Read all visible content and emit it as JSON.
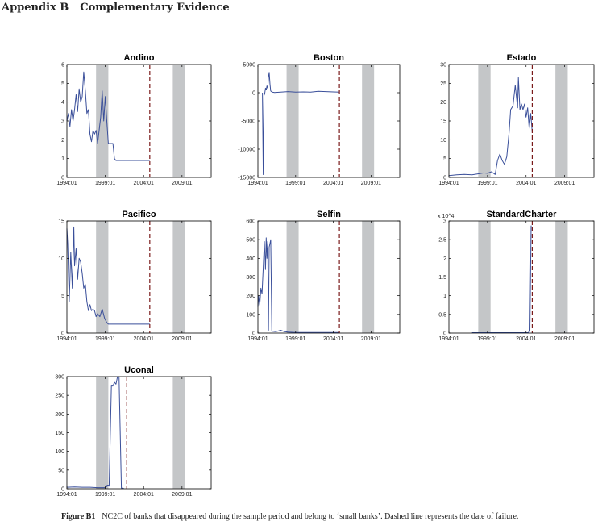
{
  "heading": {
    "section": "Appendix B",
    "title": "Complementary Evidence"
  },
  "caption": {
    "label": "Figure B1",
    "text": "NC2C of banks that disappeared during the sample period and belong to ‘small banks’. Dashed line represents the date of failure."
  },
  "colors": {
    "series": "#3a4f9a",
    "shade": "#c4c6c8",
    "failure": "#7a1a1a",
    "axis": "#000000"
  },
  "chart_data": [
    {
      "type": "line",
      "title": "Andino",
      "x_ticks": [
        "1994:01",
        "1999:01",
        "2004:01",
        "2009:01"
      ],
      "xlim": [
        1994.0,
        2012.8
      ],
      "ylim": [
        0,
        6
      ],
      "y_ticks": [
        "0",
        "1",
        "2",
        "3",
        "4",
        "5",
        "6"
      ],
      "y_tick_values": [
        0,
        1,
        2,
        3,
        4,
        5,
        6
      ],
      "y_exponent": "",
      "shaded_periods": [
        [
          1997.8,
          1999.4
        ],
        [
          2007.8,
          2009.4
        ]
      ],
      "failure_date": 2004.8,
      "x": [
        1994.0,
        1994.2,
        1994.4,
        1994.6,
        1994.8,
        1995.0,
        1995.2,
        1995.4,
        1995.6,
        1995.8,
        1996.0,
        1996.2,
        1996.4,
        1996.6,
        1996.8,
        1997.0,
        1997.2,
        1997.4,
        1997.6,
        1997.8,
        1998.0,
        1998.2,
        1998.4,
        1998.6,
        1998.8,
        1999.0,
        1999.2,
        1999.4,
        1999.6,
        1999.8,
        2000.0,
        2000.2,
        2000.4,
        2000.6,
        2004.8
      ],
      "y": [
        3.0,
        3.4,
        2.7,
        3.6,
        3.0,
        3.6,
        4.4,
        3.5,
        4.7,
        4.0,
        4.3,
        5.6,
        4.6,
        3.4,
        3.6,
        2.3,
        1.9,
        2.5,
        2.3,
        2.5,
        1.8,
        2.5,
        3.2,
        4.6,
        3.0,
        4.3,
        3.0,
        1.8,
        1.8,
        1.8,
        1.8,
        1.0,
        0.9,
        0.9,
        0.9
      ]
    },
    {
      "type": "line",
      "title": "Boston",
      "x_ticks": [
        "1994:01",
        "1999:01",
        "2004:01",
        "2009:01"
      ],
      "xlim": [
        1994.0,
        2012.8
      ],
      "ylim": [
        -15000,
        5000
      ],
      "y_ticks": [
        "-15000",
        "-10000",
        "-5000",
        "0",
        "5000"
      ],
      "y_tick_values": [
        -15000,
        -10000,
        -5000,
        0,
        5000
      ],
      "y_exponent": "",
      "shaded_periods": [
        [
          1997.8,
          1999.4
        ],
        [
          2007.8,
          2009.4
        ]
      ],
      "failure_date": 2004.8,
      "x": [
        1994.6,
        1994.7,
        1994.8,
        1994.9,
        1995.0,
        1995.1,
        1995.2,
        1995.3,
        1995.4,
        1995.5,
        1995.6,
        1995.7,
        1995.9,
        1996.2,
        1997.0,
        1998.0,
        1999.0,
        2000.0,
        2001.0,
        2002.0,
        2003.0,
        2004.0,
        2004.8
      ],
      "y": [
        0,
        -14500,
        -500,
        -200,
        800,
        500,
        1200,
        800,
        2800,
        3600,
        1500,
        300,
        100,
        50,
        100,
        200,
        100,
        150,
        100,
        250,
        200,
        150,
        100
      ]
    },
    {
      "type": "line",
      "title": "Estado",
      "x_ticks": [
        "1994:01",
        "1999:01",
        "2004:01",
        "2009:01"
      ],
      "xlim": [
        1994.0,
        2012.8
      ],
      "ylim": [
        0,
        30
      ],
      "y_ticks": [
        "0",
        "5",
        "10",
        "15",
        "20",
        "25",
        "30"
      ],
      "y_tick_values": [
        0,
        5,
        10,
        15,
        20,
        25,
        30
      ],
      "y_exponent": "",
      "shaded_periods": [
        [
          1997.8,
          1999.4
        ],
        [
          2007.8,
          2009.4
        ]
      ],
      "failure_date": 2004.8,
      "x": [
        1994.0,
        1995.0,
        1996.0,
        1997.0,
        1998.0,
        1998.5,
        1999.0,
        1999.5,
        2000.0,
        2000.3,
        2000.6,
        2000.9,
        2001.2,
        2001.5,
        2001.8,
        2002.0,
        2002.3,
        2002.6,
        2002.9,
        2003.0,
        2003.2,
        2003.4,
        2003.6,
        2003.8,
        2004.0,
        2004.2,
        2004.4,
        2004.6,
        2004.8
      ],
      "y": [
        0.5,
        0.7,
        0.8,
        0.7,
        1.0,
        1.2,
        1.1,
        1.5,
        0.8,
        4.5,
        6.2,
        4.5,
        3.5,
        5.5,
        12,
        18,
        19,
        24.5,
        18.5,
        26.5,
        18,
        19.5,
        18,
        19.5,
        16,
        18.5,
        13,
        17,
        12
      ]
    },
    {
      "type": "line",
      "title": "Pacifico",
      "x_ticks": [
        "1994:01",
        "1999:01",
        "2004:01",
        "2009:01"
      ],
      "xlim": [
        1994.0,
        2012.8
      ],
      "ylim": [
        0,
        15
      ],
      "y_ticks": [
        "0",
        "5",
        "10",
        "15"
      ],
      "y_tick_values": [
        0,
        5,
        10,
        15
      ],
      "y_exponent": "",
      "shaded_periods": [
        [
          1997.8,
          1999.4
        ],
        [
          2007.8,
          2009.4
        ]
      ],
      "failure_date": 2004.8,
      "x": [
        1994.0,
        1994.1,
        1994.3,
        1994.5,
        1994.7,
        1994.9,
        1995.0,
        1995.2,
        1995.4,
        1995.6,
        1995.8,
        1996.0,
        1996.2,
        1996.4,
        1996.6,
        1996.8,
        1997.0,
        1997.2,
        1997.4,
        1997.6,
        1997.8,
        1998.0,
        1998.3,
        1998.6,
        1998.9,
        1999.2,
        1999.4,
        2004.8
      ],
      "y": [
        14.0,
        12.0,
        4.2,
        10.8,
        6.0,
        14.2,
        9.0,
        11.3,
        7.2,
        10.0,
        9.5,
        8.0,
        6.0,
        6.5,
        4.2,
        3.0,
        3.8,
        3.0,
        3.2,
        3.0,
        2.2,
        2.6,
        2.2,
        3.2,
        2.0,
        1.4,
        1.2,
        1.2
      ]
    },
    {
      "type": "line",
      "title": "Selfin",
      "x_ticks": [
        "1994:01",
        "1999:01",
        "2004:01",
        "2009:01"
      ],
      "xlim": [
        1994.0,
        2012.8
      ],
      "ylim": [
        0,
        600
      ],
      "y_ticks": [
        "0",
        "100",
        "200",
        "300",
        "400",
        "500",
        "600"
      ],
      "y_tick_values": [
        0,
        100,
        200,
        300,
        400,
        500,
        600
      ],
      "y_exponent": "",
      "shaded_periods": [
        [
          1997.8,
          1999.4
        ],
        [
          2007.8,
          2009.4
        ]
      ],
      "failure_date": 2004.8,
      "x": [
        1994.0,
        1994.1,
        1994.25,
        1994.4,
        1994.55,
        1994.7,
        1994.85,
        1995.0,
        1995.1,
        1995.2,
        1995.3,
        1995.4,
        1995.5,
        1995.6,
        1995.7,
        1995.85,
        1996.0,
        1996.3,
        1996.6,
        1997.0,
        1997.5,
        1998.0,
        1999.0,
        2000.0,
        2004.8
      ],
      "y": [
        140,
        200,
        150,
        240,
        210,
        350,
        490,
        340,
        510,
        400,
        490,
        15,
        460,
        480,
        500,
        10,
        10,
        8,
        10,
        15,
        8,
        5,
        3,
        3,
        3
      ]
    },
    {
      "type": "line",
      "title": "StandardCharter",
      "x_ticks": [
        "1994:01",
        "1999:01",
        "2004:01",
        "2009:01"
      ],
      "xlim": [
        1994.0,
        2012.8
      ],
      "ylim": [
        0,
        3
      ],
      "y_ticks": [
        "0",
        "0.5",
        "1",
        "1.5",
        "2",
        "2.5",
        "3"
      ],
      "y_tick_values": [
        0,
        0.5,
        1,
        1.5,
        2,
        2.5,
        3
      ],
      "y_exponent": "x 10^4",
      "shaded_periods": [
        [
          1997.8,
          1999.4
        ],
        [
          2007.8,
          2009.4
        ]
      ],
      "failure_date": 2004.8,
      "x": [
        1997.0,
        1998.0,
        1999.0,
        2000.0,
        2001.0,
        2002.0,
        2003.0,
        2004.0,
        2004.25,
        2004.5,
        2004.65
      ],
      "y": [
        0.01,
        0.01,
        0.01,
        0.01,
        0.01,
        0.01,
        0.01,
        0.01,
        0.01,
        0.05,
        2.88
      ]
    },
    {
      "type": "line",
      "title": "Uconal",
      "x_ticks": [
        "1994:01",
        "1999:01",
        "2004:01",
        "2009:01"
      ],
      "xlim": [
        1994.0,
        2012.8
      ],
      "ylim": [
        0,
        300
      ],
      "y_ticks": [
        "0",
        "50",
        "100",
        "150",
        "200",
        "250",
        "300"
      ],
      "y_tick_values": [
        0,
        50,
        100,
        150,
        200,
        250,
        300
      ],
      "y_exponent": "",
      "shaded_periods": [
        [
          1997.8,
          1999.4
        ],
        [
          2007.8,
          2009.4
        ]
      ],
      "failure_date": 2001.8,
      "x": [
        1994.0,
        1995.0,
        1996.0,
        1997.0,
        1998.0,
        1999.0,
        1999.3,
        1999.5,
        1999.8,
        2000.0,
        2000.2,
        2000.4,
        2000.6,
        2000.8,
        2001.1,
        2001.4
      ],
      "y": [
        4,
        5,
        4,
        4,
        3,
        3,
        8,
        7,
        275,
        275,
        285,
        280,
        300,
        300,
        2,
        1
      ]
    }
  ]
}
